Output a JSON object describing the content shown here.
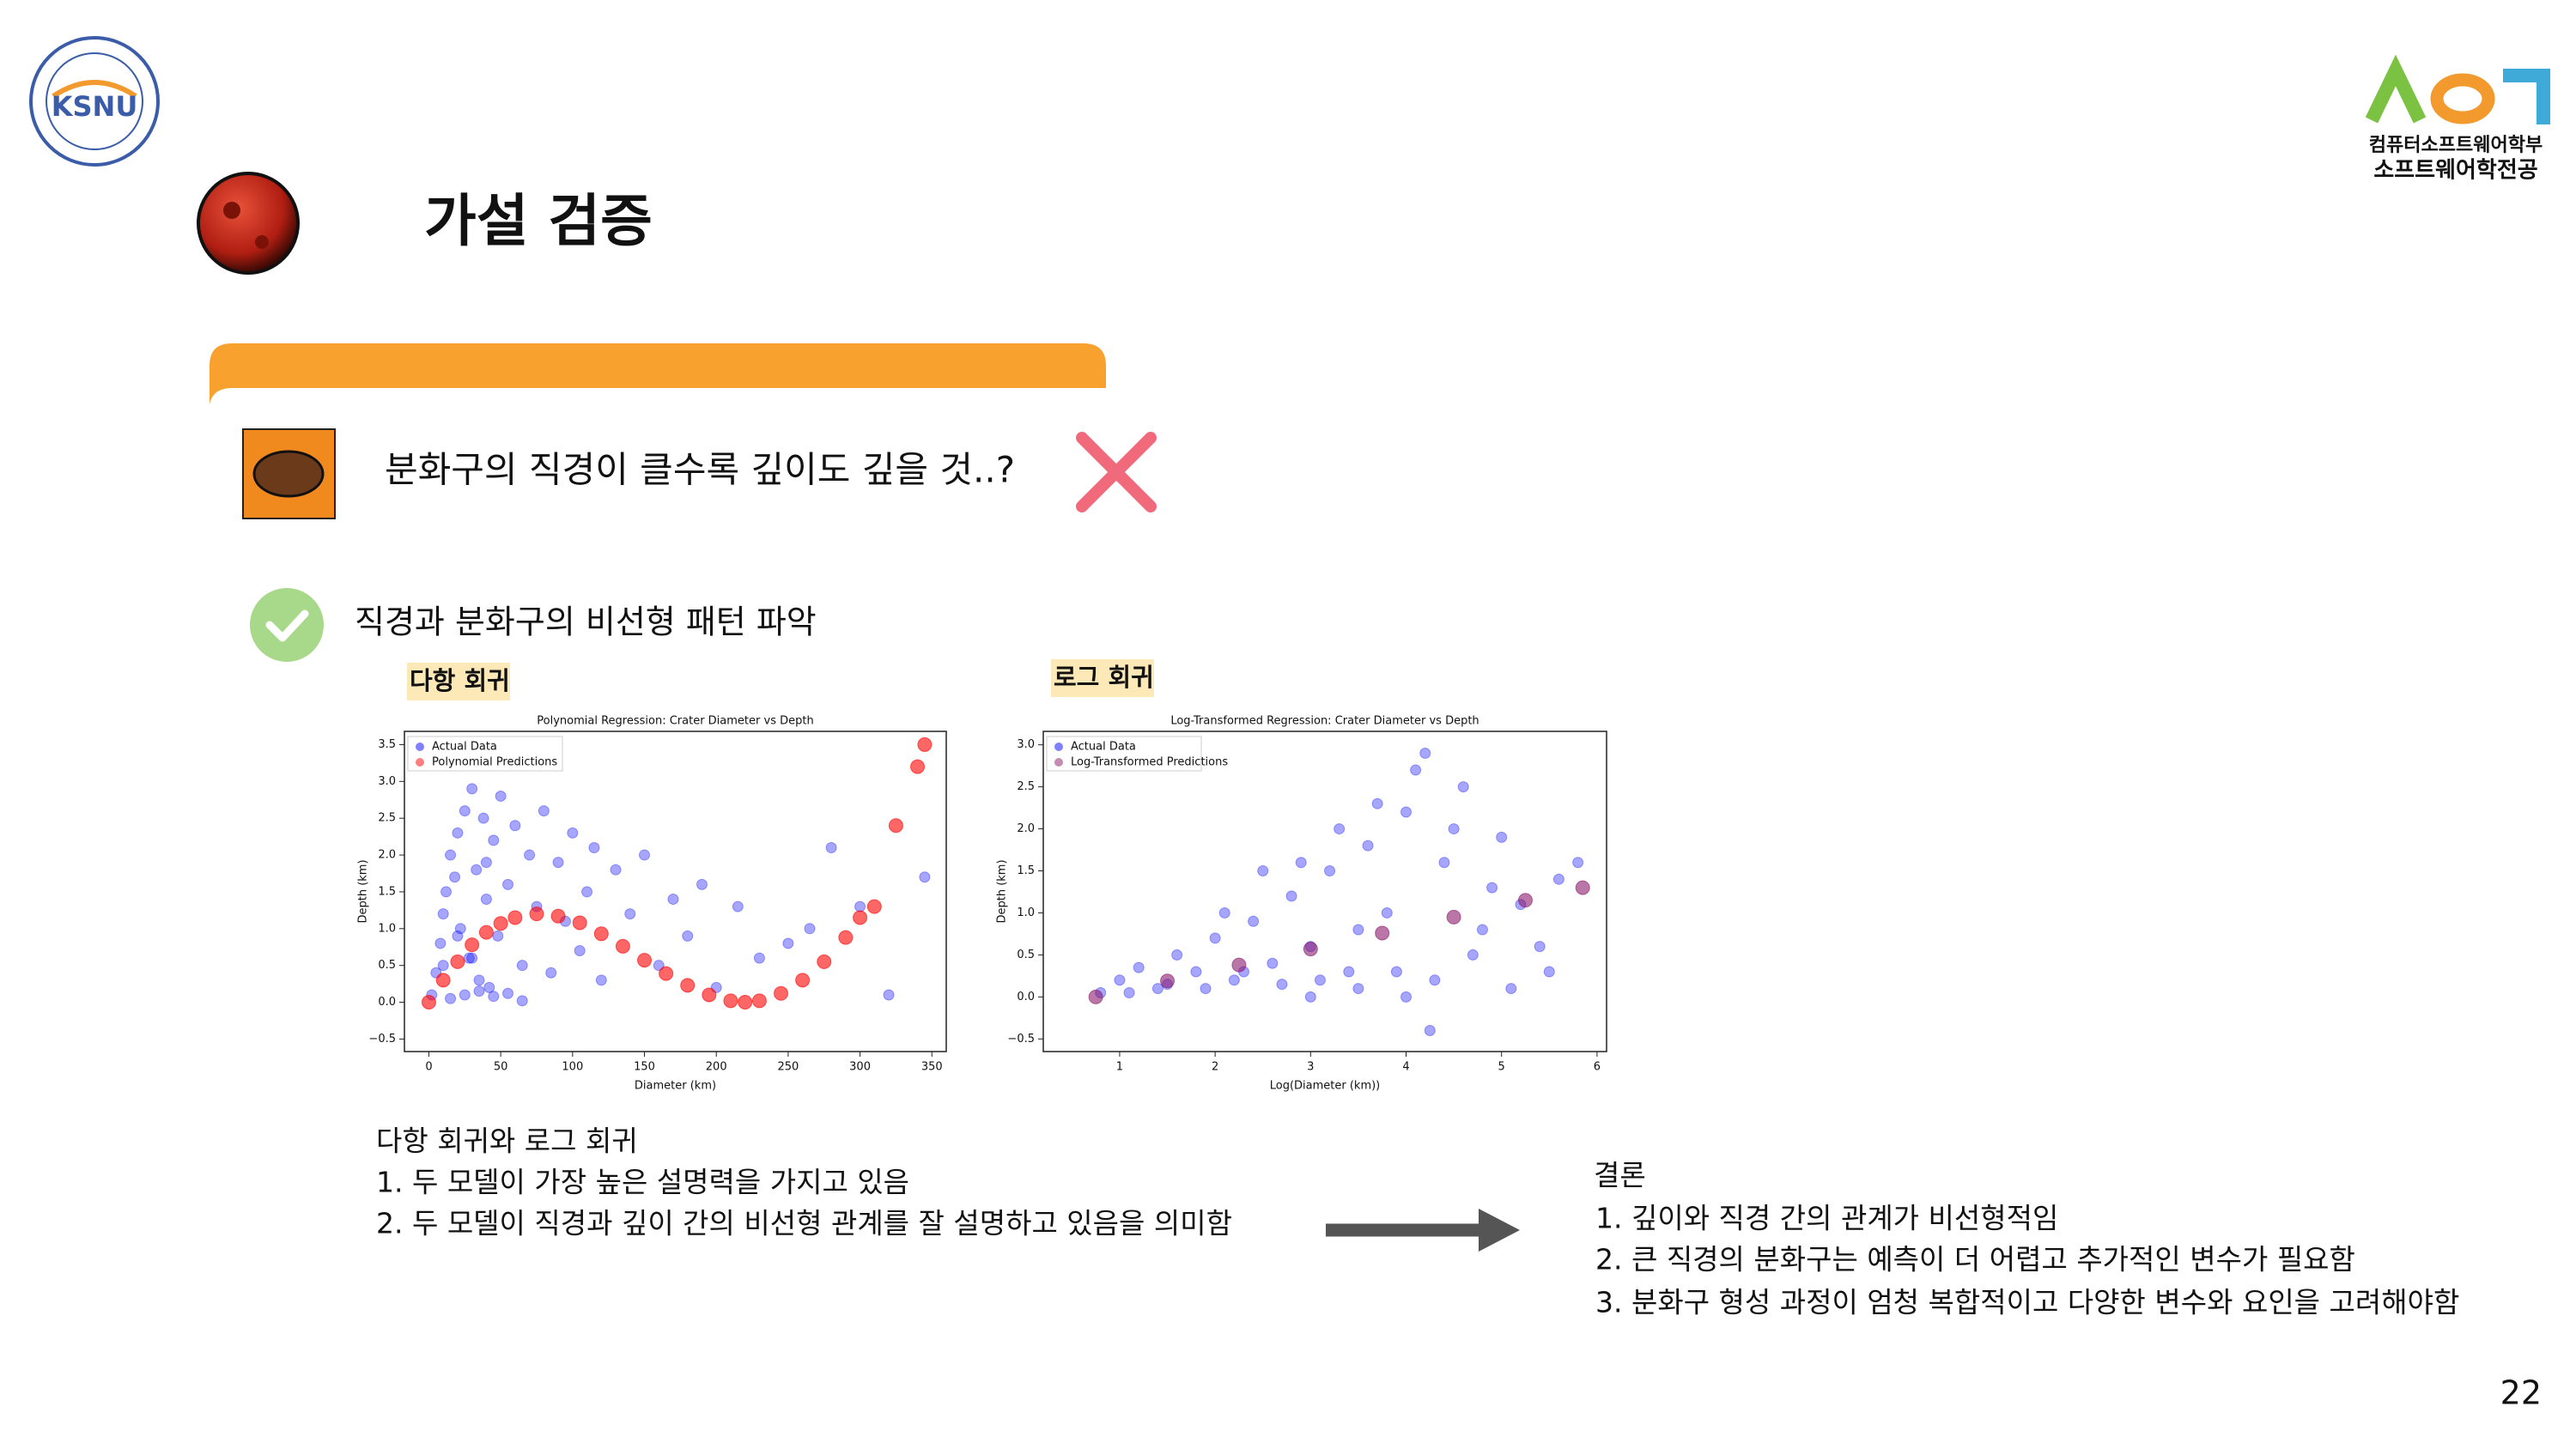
{
  "header": {
    "title": "가설 검증",
    "logo_left": "KSNU",
    "dept_lines": [
      "컴퓨터소프트웨어학부",
      "소프트웨어학전공"
    ]
  },
  "hypothesis": "분화구의 직경이 클수록 깊이도 깊을 것..?",
  "finding": "직경과 분화구의 비선형 패턴 파악",
  "chart_labels": [
    "다항 회귀",
    "로그 회귀"
  ],
  "chart_data": [
    {
      "type": "scatter",
      "title": "Polynomial Regression: Crater Diameter vs Depth",
      "x_label": "Diameter (km)",
      "y_label": "Depth (km)",
      "xlim": [
        -17,
        360
      ],
      "ylim": [
        -0.67,
        3.68
      ],
      "xticks": [
        0,
        50,
        100,
        150,
        200,
        250,
        300,
        350
      ],
      "yticks": [
        {
          "value": -0.5,
          "label": "−0.5"
        },
        {
          "value": 0,
          "label": "0.0"
        },
        0.5,
        {
          "value": 1,
          "label": "1.0"
        },
        1.5,
        {
          "value": 2,
          "label": "2.0"
        },
        2.5,
        {
          "value": 3,
          "label": "3.0"
        },
        3.5
      ],
      "legend": "upper left",
      "series": [
        {
          "name": "Actual Data",
          "color": "#0000ff",
          "x": [
            2,
            5,
            8,
            10,
            12,
            15,
            18,
            20,
            22,
            25,
            28,
            30,
            33,
            35,
            38,
            40,
            42,
            45,
            48,
            50,
            55,
            60,
            65,
            70,
            75,
            80,
            85,
            90,
            95,
            100,
            105,
            110,
            115,
            120,
            130,
            140,
            150,
            160,
            170,
            180,
            190,
            200,
            215,
            230,
            250,
            265,
            280,
            300,
            320,
            345,
            15,
            25,
            35,
            45,
            55,
            65,
            10,
            20,
            30,
            40
          ],
          "values": [
            0.1,
            0.4,
            0.8,
            1.2,
            1.5,
            2.0,
            1.7,
            2.3,
            1.0,
            2.6,
            0.6,
            2.9,
            1.8,
            0.3,
            2.5,
            1.4,
            0.2,
            2.2,
            0.9,
            2.8,
            1.6,
            2.4,
            0.5,
            2.0,
            1.3,
            2.6,
            0.4,
            1.9,
            1.1,
            2.3,
            0.7,
            1.5,
            2.1,
            0.3,
            1.8,
            1.2,
            2.0,
            0.5,
            1.4,
            0.9,
            1.6,
            0.2,
            1.3,
            0.6,
            0.8,
            1.0,
            2.1,
            1.3,
            0.1,
            1.7,
            0.05,
            0.1,
            0.15,
            0.08,
            0.12,
            0.02,
            0.5,
            0.9,
            0.6,
            1.9
          ]
        },
        {
          "name": "Polynomial Predictions",
          "color": "#ff0000",
          "x": [
            0,
            10,
            20,
            30,
            40,
            50,
            60,
            75,
            90,
            105,
            120,
            135,
            150,
            165,
            180,
            195,
            210,
            220,
            230,
            245,
            260,
            275,
            290,
            300,
            310,
            325,
            340,
            345
          ],
          "values": [
            0,
            0.3,
            0.55,
            0.78,
            0.95,
            1.07,
            1.15,
            1.2,
            1.17,
            1.08,
            0.93,
            0.76,
            0.57,
            0.39,
            0.23,
            0.1,
            0.02,
            0,
            0.02,
            0.12,
            0.3,
            0.55,
            0.88,
            1.15,
            1.3,
            2.4,
            3.2,
            3.5
          ]
        }
      ]
    },
    {
      "type": "scatter",
      "title": "Log-Transformed Regression: Crater Diameter vs Depth",
      "x_label": "Log(Diameter (km))",
      "y_label": "Depth (km)",
      "xlim": [
        0.2,
        6.1
      ],
      "ylim": [
        -0.65,
        3.16
      ],
      "xticks": [
        1,
        2,
        3,
        4,
        5,
        6
      ],
      "yticks": [
        {
          "value": -0.5,
          "label": "−0.5"
        },
        {
          "value": 0,
          "label": "0.0"
        },
        0.5,
        {
          "value": 1,
          "label": "1.0"
        },
        1.5,
        {
          "value": 2,
          "label": "2.0"
        },
        2.5,
        {
          "value": 3,
          "label": "3.0"
        }
      ],
      "legend": "upper left",
      "series": [
        {
          "name": "Actual Data",
          "color": "#0000ff",
          "x": [
            0.8,
            1.0,
            1.2,
            1.4,
            1.6,
            1.8,
            2.0,
            2.2,
            2.4,
            2.6,
            2.8,
            3.0,
            3.2,
            3.4,
            3.6,
            3.8,
            4.0,
            4.2,
            4.4,
            4.6,
            4.8,
            5.0,
            5.2,
            5.4,
            5.6,
            5.8,
            1.1,
            1.5,
            1.9,
            2.3,
            2.7,
            3.1,
            3.5,
            3.9,
            4.3,
            4.7,
            5.1,
            5.5,
            2.1,
            2.9,
            3.3,
            3.7,
            4.1,
            4.5,
            4.9,
            3.0,
            4.0,
            4.25,
            3.5,
            2.5
          ],
          "values": [
            0.05,
            0.2,
            0.35,
            0.1,
            0.5,
            0.3,
            0.7,
            0.2,
            0.9,
            0.4,
            1.2,
            0.6,
            1.5,
            0.3,
            1.8,
            1.0,
            2.2,
            2.9,
            1.6,
            2.5,
            0.8,
            1.9,
            1.1,
            0.6,
            1.4,
            1.6,
            0.05,
            0.15,
            0.1,
            0.3,
            0.15,
            0.2,
            0.1,
            0.3,
            0.2,
            0.5,
            0.1,
            0.3,
            1.0,
            1.6,
            2.0,
            2.3,
            2.7,
            2.0,
            1.3,
            0.0,
            0.0,
            -0.4,
            0.8,
            1.5
          ]
        },
        {
          "name": "Log-Transformed Predictions",
          "color": "#8b1a6b",
          "x": [
            0.75,
            1.5,
            2.25,
            3,
            3.75,
            4.5,
            5.25,
            5.85
          ],
          "values": [
            0,
            0.19,
            0.38,
            0.57,
            0.76,
            0.95,
            1.15,
            1.3
          ]
        }
      ]
    }
  ],
  "summary": {
    "heading": "다항 회귀와 로그 회귀",
    "lines": [
      "1. 두 모델이 가장 높은 설명력을 가지고 있음",
      "2. 두 모델이 직경과 깊이 간의 비선형 관계를 잘 설명하고 있음을 의미함"
    ]
  },
  "conclusion": {
    "heading": "결론",
    "lines": [
      "1. 깊이와 직경 간의 관계가 비선형적임",
      "2. 큰 직경의 분화구는 예측이 더 어렵고 추가적인 변수가 필요함",
      "3. 분화구 형성 과정이 엄청 복합적이고 다양한 변수와 요인을 고려해야함"
    ]
  },
  "page_number": "22"
}
